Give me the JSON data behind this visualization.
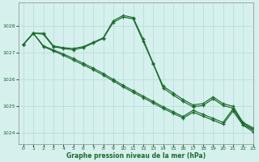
{
  "title": "Graphe pression niveau de la mer (hPa)",
  "bg_color": "#d6f0ee",
  "grid_color": "#b0ddd8",
  "line_color": "#1a6b2a",
  "xlim": [
    -0.5,
    23
  ],
  "ylim": [
    1023.6,
    1028.85
  ],
  "yticks": [
    1024,
    1025,
    1026,
    1027,
    1028
  ],
  "xticks": [
    0,
    1,
    2,
    3,
    4,
    5,
    6,
    7,
    8,
    9,
    10,
    11,
    12,
    13,
    14,
    15,
    16,
    17,
    18,
    19,
    20,
    21,
    22,
    23
  ],
  "line_curved": [
    1027.3,
    1027.72,
    1027.72,
    1027.25,
    1027.18,
    1027.15,
    1027.22,
    1027.38,
    1027.55,
    1028.18,
    1028.38,
    1028.3,
    1027.5,
    1026.6,
    1025.75,
    1025.5,
    1025.25,
    1025.05,
    1025.1,
    1025.35,
    1025.1,
    1025.0,
    1024.4,
    1024.2
  ],
  "line_curved2": [
    1027.3,
    1027.72,
    1027.68,
    1027.22,
    1027.15,
    1027.1,
    1027.18,
    1027.35,
    1027.52,
    1028.12,
    1028.32,
    1028.25,
    1027.42,
    1026.58,
    1025.68,
    1025.42,
    1025.18,
    1024.98,
    1025.03,
    1025.28,
    1025.03,
    1024.93,
    1024.32,
    1024.12
  ],
  "line_diag1": [
    1027.3,
    1027.72,
    1027.25,
    1027.1,
    1026.95,
    1026.78,
    1026.6,
    1026.42,
    1026.22,
    1026.0,
    1025.78,
    1025.58,
    1025.38,
    1025.18,
    1024.98,
    1024.8,
    1024.62,
    1024.85,
    1024.7,
    1024.55,
    1024.4,
    1024.9,
    1024.38,
    1024.15
  ],
  "line_diag2": [
    1027.3,
    1027.72,
    1027.22,
    1027.06,
    1026.9,
    1026.72,
    1026.54,
    1026.36,
    1026.16,
    1025.94,
    1025.72,
    1025.52,
    1025.32,
    1025.12,
    1024.92,
    1024.74,
    1024.56,
    1024.78,
    1024.63,
    1024.48,
    1024.33,
    1024.82,
    1024.3,
    1024.05
  ]
}
